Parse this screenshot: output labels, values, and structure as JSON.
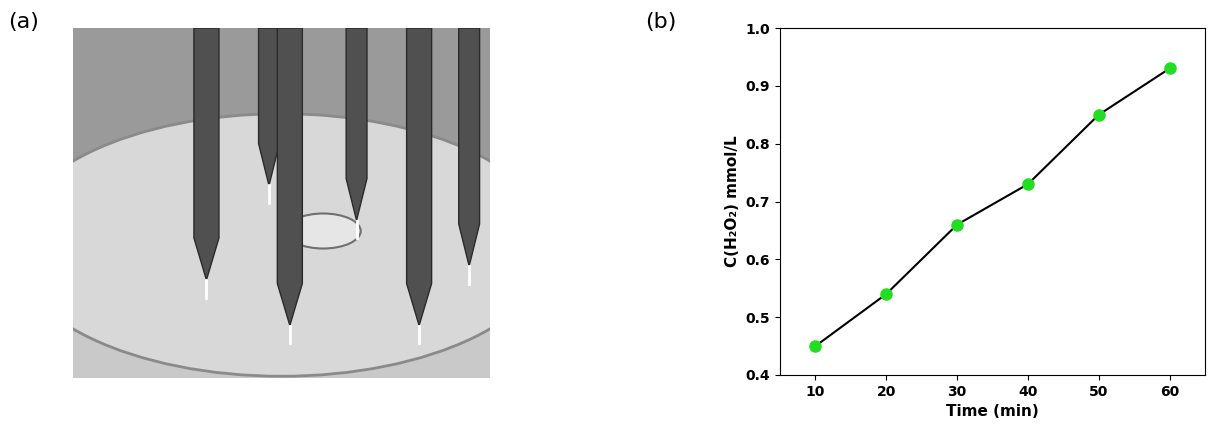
{
  "panel_labels": [
    "(a)",
    "(b)"
  ],
  "chart_data": {
    "type": "line",
    "x_label": "Time (min)",
    "y_label": "C(H₂O₂) mmol/L",
    "x": [
      10,
      20,
      30,
      40,
      50,
      60
    ],
    "series": [
      {
        "values": [
          0.45,
          0.54,
          0.66,
          0.73,
          0.85,
          0.93
        ],
        "color": "#22dd22",
        "marker": "o",
        "line_style": "solid"
      }
    ],
    "xlim": [
      5,
      65
    ],
    "xticks": [
      10,
      20,
      30,
      40,
      50,
      60
    ],
    "ylim": [
      0.4,
      1.0
    ],
    "yticks": [
      0.4,
      0.5,
      0.6,
      0.7,
      0.8,
      0.9,
      1.0
    ],
    "grid": false
  }
}
